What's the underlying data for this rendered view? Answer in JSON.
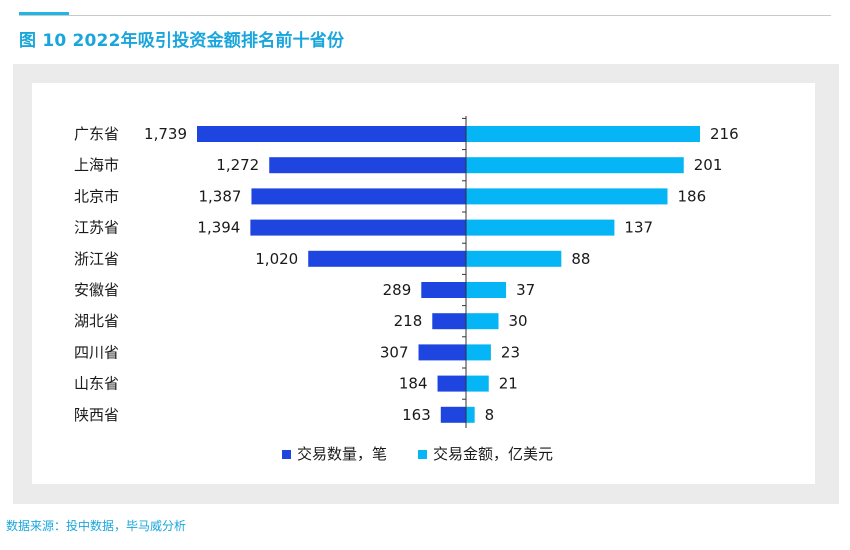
{
  "header": {
    "title": "图 10  2022年吸引投资金额排名前十省份"
  },
  "source_note": "数据来源：投中数据，毕马威分析",
  "colors": {
    "accent": "#1fb6e6",
    "title": "#1aa6dc",
    "deals": "#1f45e0",
    "amount": "#05b5f5"
  },
  "chart_data": {
    "type": "bar",
    "orientation": "horizontal-butterfly",
    "categories": [
      "广东省",
      "上海市",
      "北京市",
      "江苏省",
      "浙江省",
      "安徽省",
      "湖北省",
      "四川省",
      "山东省",
      "陕西省"
    ],
    "series": [
      {
        "name": "交易数量，笔",
        "side": "left",
        "values": [
          1739,
          1272,
          1387,
          1394,
          1020,
          289,
          218,
          307,
          184,
          163
        ],
        "labels": [
          "1,739",
          "1,272",
          "1,387",
          "1,394",
          "1,020",
          "289",
          "218",
          "307",
          "184",
          "163"
        ]
      },
      {
        "name": "交易金额，亿美元",
        "side": "right",
        "values": [
          216,
          201,
          186,
          137,
          88,
          37,
          30,
          23,
          21,
          8
        ],
        "labels": [
          "216",
          "201",
          "186",
          "137",
          "88",
          "37",
          "30",
          "23",
          "21",
          "8"
        ]
      }
    ],
    "legend_position": "bottom-center",
    "grid": false
  }
}
